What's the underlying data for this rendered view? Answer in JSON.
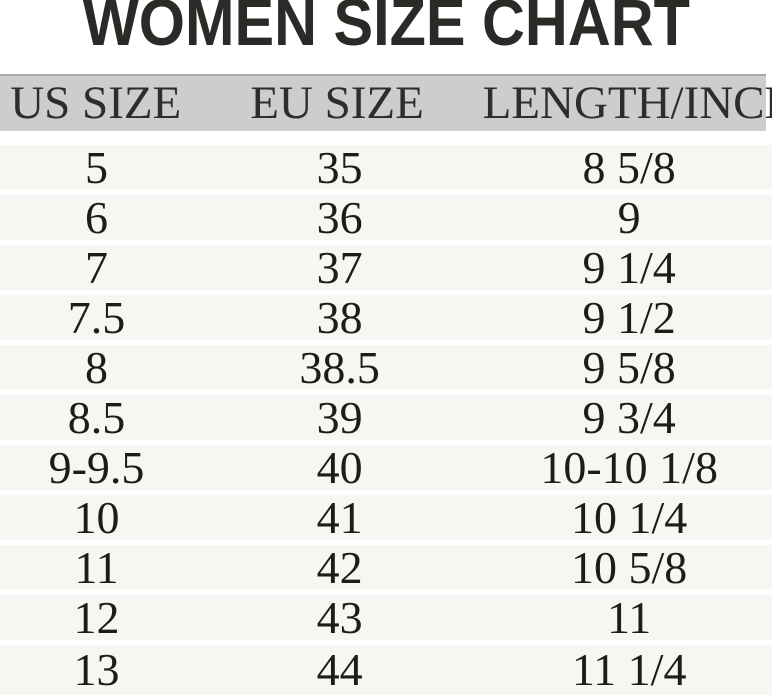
{
  "title": "WOMEN SIZE CHART",
  "colors": {
    "title_color": "#2b2a27",
    "header_bg": "#cecdcb",
    "header_border": "#a9a8a6",
    "header_text": "#2e2d2b",
    "row_bg": "#f8f6f2",
    "text_color": "#1d1c1a",
    "page_bg": "#ffffff"
  },
  "chart_data": {
    "type": "table",
    "title": "WOMEN SIZE CHART",
    "columns": [
      "US SIZE",
      "EU SIZE",
      "LENGTH/INCH"
    ],
    "rows": [
      [
        "5",
        "35",
        "8 5/8"
      ],
      [
        "6",
        "36",
        "9"
      ],
      [
        "7",
        "37",
        "9 1/4"
      ],
      [
        "7.5",
        "38",
        "9 1/2"
      ],
      [
        "8",
        "38.5",
        "9 5/8"
      ],
      [
        "8.5",
        "39",
        "9 3/4"
      ],
      [
        "9-9.5",
        "40",
        "10-10 1/8"
      ],
      [
        "10",
        "41",
        "10 1/4"
      ],
      [
        "11",
        "42",
        "10 5/8"
      ],
      [
        "12",
        "43",
        "11"
      ],
      [
        "13",
        "44",
        "11 1/4"
      ]
    ],
    "layout": {
      "header_position": "top",
      "column_align": "center",
      "row_striping": "uniform light bands separated by white gaps"
    }
  }
}
